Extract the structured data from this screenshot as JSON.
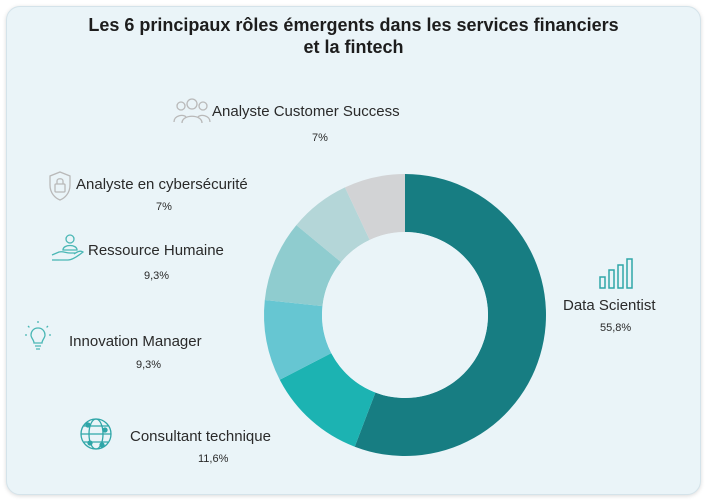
{
  "title_line1": "Les 6 principaux rôles émergents dans les services financiers",
  "title_line2": "et la fintech",
  "colors": {
    "background": "#eaf4f8",
    "center": "#eaf4f8"
  },
  "chart_data": {
    "type": "pie",
    "variant": "donut",
    "series": [
      {
        "name": "Data Scientist",
        "value": 55.8,
        "label": "55,8%",
        "color": "#177d82",
        "icon": "bar-chart-icon"
      },
      {
        "name": "Consultant technique",
        "value": 11.6,
        "label": "11,6%",
        "color": "#1cb3b2",
        "icon": "globe-network-icon"
      },
      {
        "name": "Innovation Manager",
        "value": 9.3,
        "label": "9,3%",
        "color": "#66c6d2",
        "icon": "lightbulb-icon"
      },
      {
        "name": "Ressource Humaine",
        "value": 9.3,
        "label": "9,3%",
        "color": "#8fcccf",
        "icon": "hand-person-icon"
      },
      {
        "name": "Analyste en cybersécurité",
        "value": 7,
        "label": "7%",
        "color": "#b4d6d8",
        "icon": "shield-lock-icon"
      },
      {
        "name": "Analyste Customer Success",
        "value": 7,
        "label": "7%",
        "color": "#d2d3d5",
        "icon": "people-group-icon"
      }
    ]
  }
}
